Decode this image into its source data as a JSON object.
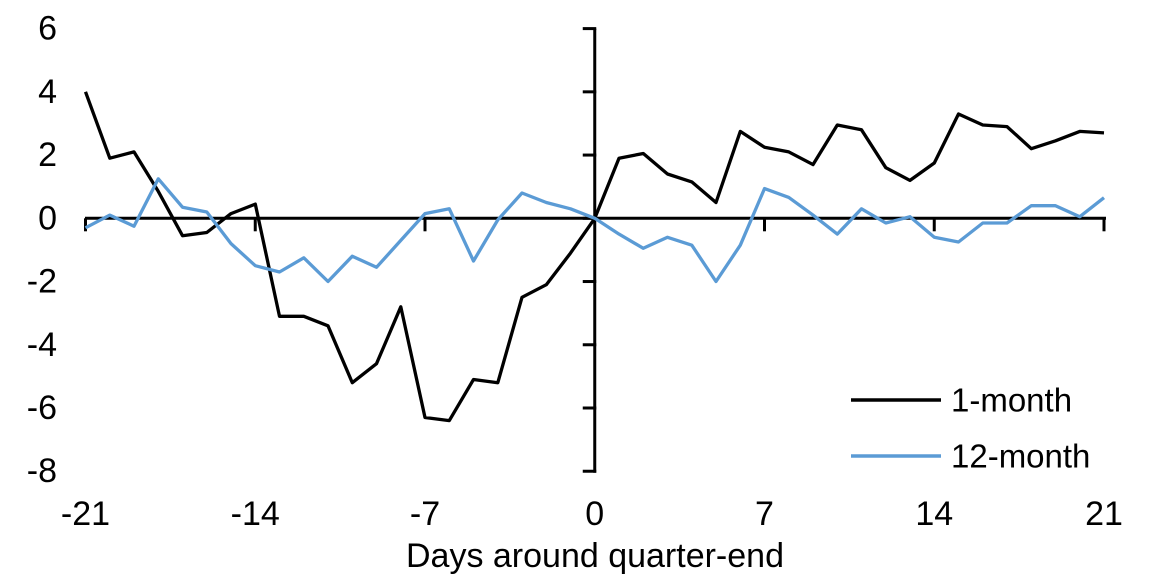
{
  "chart_data": {
    "type": "line",
    "title": "",
    "xlabel": "Days around quarter-end",
    "ylabel": "",
    "x_range": [
      -21,
      21
    ],
    "ylim": [
      -8,
      6
    ],
    "x_ticks": [
      -21,
      -14,
      -7,
      0,
      7,
      14,
      21
    ],
    "y_ticks": [
      6,
      4,
      2,
      0,
      -2,
      -4,
      -6,
      -8
    ],
    "grid": false,
    "legend_position": "inside-bottom-right",
    "axis_color": "#000000",
    "x": [
      -21,
      -20,
      -19,
      -18,
      -17,
      -16,
      -15,
      -14,
      -13,
      -12,
      -11,
      -10,
      -9,
      -8,
      -7,
      -6,
      -5,
      -4,
      -3,
      -2,
      -1,
      0,
      1,
      2,
      3,
      4,
      5,
      6,
      7,
      8,
      9,
      10,
      11,
      12,
      13,
      14,
      15,
      16,
      17,
      18,
      19,
      20,
      21
    ],
    "series": [
      {
        "name": "1-month",
        "color": "#000000",
        "values": [
          4.0,
          1.9,
          2.1,
          0.85,
          -0.55,
          -0.45,
          0.15,
          0.45,
          -3.1,
          -3.1,
          -3.4,
          -5.2,
          -4.6,
          -2.8,
          -6.3,
          -6.4,
          -5.1,
          -5.2,
          -2.5,
          -2.1,
          -1.1,
          0.0,
          1.9,
          2.05,
          1.4,
          1.15,
          0.5,
          2.75,
          2.25,
          2.1,
          1.7,
          2.95,
          2.8,
          1.6,
          1.2,
          1.75,
          3.3,
          2.95,
          2.9,
          2.2,
          2.45,
          2.75,
          2.7
        ]
      },
      {
        "name": "12-month",
        "color": "#5B9BD5",
        "values": [
          -0.3,
          0.1,
          -0.25,
          1.25,
          0.35,
          0.2,
          -0.8,
          -1.5,
          -1.7,
          -1.25,
          -2.0,
          -1.2,
          -1.55,
          -0.7,
          0.15,
          0.3,
          -1.35,
          -0.05,
          0.8,
          0.5,
          0.3,
          0.0,
          -0.5,
          -0.95,
          -0.6,
          -0.85,
          -2.0,
          -0.85,
          0.94,
          0.66,
          0.1,
          -0.5,
          0.3,
          -0.15,
          0.05,
          -0.6,
          -0.75,
          -0.15,
          -0.15,
          0.4,
          0.4,
          0.05,
          0.65
        ]
      }
    ]
  }
}
